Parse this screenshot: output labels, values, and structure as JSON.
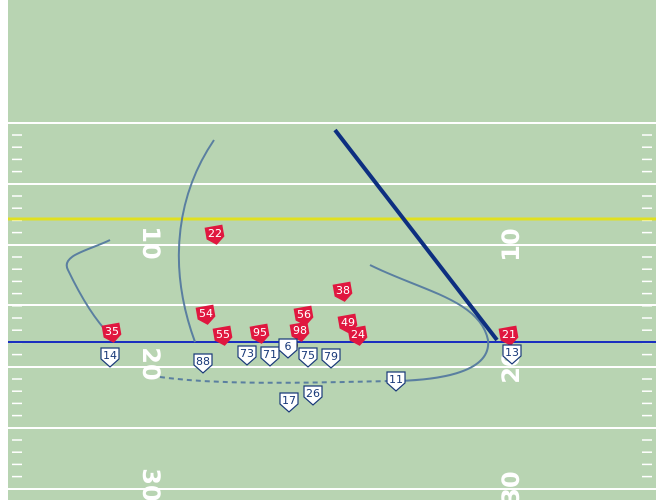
{
  "yard_numbers": [
    "10",
    "20",
    "30",
    "10",
    "20",
    "30"
  ],
  "defense": [
    "22",
    "54",
    "55",
    "95",
    "98",
    "56",
    "38",
    "49",
    "24",
    "35",
    "21"
  ],
  "offense": [
    "14",
    "88",
    "73",
    "71",
    "6",
    "75",
    "79",
    "11",
    "17",
    "26",
    "13"
  ]
}
